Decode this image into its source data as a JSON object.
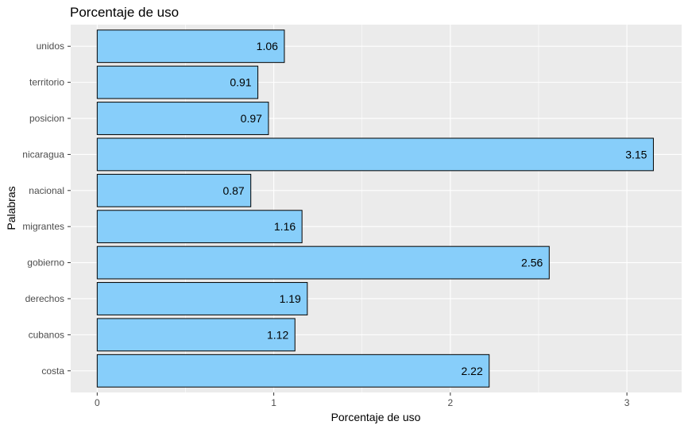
{
  "chart_data": {
    "type": "bar",
    "orientation": "horizontal",
    "title": "Porcentaje de uso",
    "xlabel": "Porcentaje de uso",
    "ylabel": "Palabras",
    "categories": [
      "costa",
      "cubanos",
      "derechos",
      "gobierno",
      "migrantes",
      "nacional",
      "nicaragua",
      "posicion",
      "territorio",
      "unidos"
    ],
    "values": [
      2.22,
      1.12,
      1.19,
      2.56,
      1.16,
      0.87,
      3.15,
      0.97,
      0.91,
      1.06
    ],
    "data_labels": [
      "2.22",
      "1.12",
      "1.19",
      "2.56",
      "1.16",
      "0.87",
      "3.15",
      "0.97",
      "0.91",
      "1.06"
    ],
    "x_ticks": [
      "0",
      "1",
      "2",
      "3"
    ],
    "xlim": [
      -0.15,
      3.31
    ],
    "grid": true,
    "bar_color": "#87CEFA",
    "bar_border_color": "#000000",
    "panel_background": "#EBEBEB"
  }
}
